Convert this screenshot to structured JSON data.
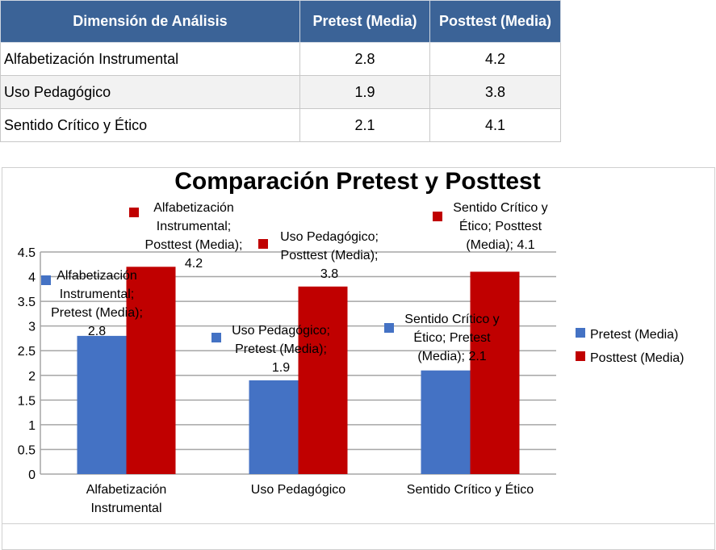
{
  "table": {
    "headers": [
      "Dimensión de Análisis",
      "Pretest (Media)",
      "Posttest (Media)"
    ],
    "rows": [
      [
        "Alfabetización Instrumental",
        "2.8",
        "4.2"
      ],
      [
        "Uso Pedagógico",
        "1.9",
        "3.8"
      ],
      [
        "Sentido Crítico y Ético",
        "2.1",
        "4.1"
      ]
    ]
  },
  "chart_data": {
    "type": "bar",
    "title": "Comparación Pretest y Posttest",
    "categories": [
      "Alfabetización Instrumental",
      "Uso Pedagógico",
      "Sentido Crítico y Ético"
    ],
    "category_tick_lines": [
      [
        "Alfabetización",
        "Instrumental"
      ],
      [
        "Uso Pedagógico"
      ],
      [
        "Sentido Crítico y Ético"
      ]
    ],
    "series": [
      {
        "name": "Pretest (Media)",
        "values": [
          2.8,
          1.9,
          2.1
        ],
        "color": "#4472c4"
      },
      {
        "name": "Posttest (Media)",
        "values": [
          4.2,
          3.8,
          4.1
        ],
        "color": "#c00000"
      }
    ],
    "ylim": [
      0,
      4.5
    ],
    "yticks": [
      "0",
      "0.5",
      "1",
      "1.5",
      "2",
      "2.5",
      "3",
      "3.5",
      "4",
      "4.5"
    ],
    "grid": true,
    "legend_position": "right",
    "data_labels": [
      {
        "series": 0,
        "category": 0,
        "lines": [
          "Alfabetización",
          "Instrumental;",
          "Pretest (Media);",
          "2.8"
        ]
      },
      {
        "series": 1,
        "category": 0,
        "lines": [
          "Alfabetización",
          "Instrumental;",
          "Posttest (Media);",
          "4.2"
        ]
      },
      {
        "series": 0,
        "category": 1,
        "lines": [
          "Uso Pedagógico;",
          "Pretest (Media);",
          "1.9"
        ]
      },
      {
        "series": 1,
        "category": 1,
        "lines": [
          "Uso Pedagógico;",
          "Posttest (Media);",
          "3.8"
        ]
      },
      {
        "series": 0,
        "category": 2,
        "lines": [
          "Sentido Crítico y",
          "Ético; Pretest",
          "(Media); 2.1"
        ]
      },
      {
        "series": 1,
        "category": 2,
        "lines": [
          "Sentido Crítico y",
          "Ético; Posttest",
          "(Media); 4.1"
        ]
      }
    ]
  }
}
